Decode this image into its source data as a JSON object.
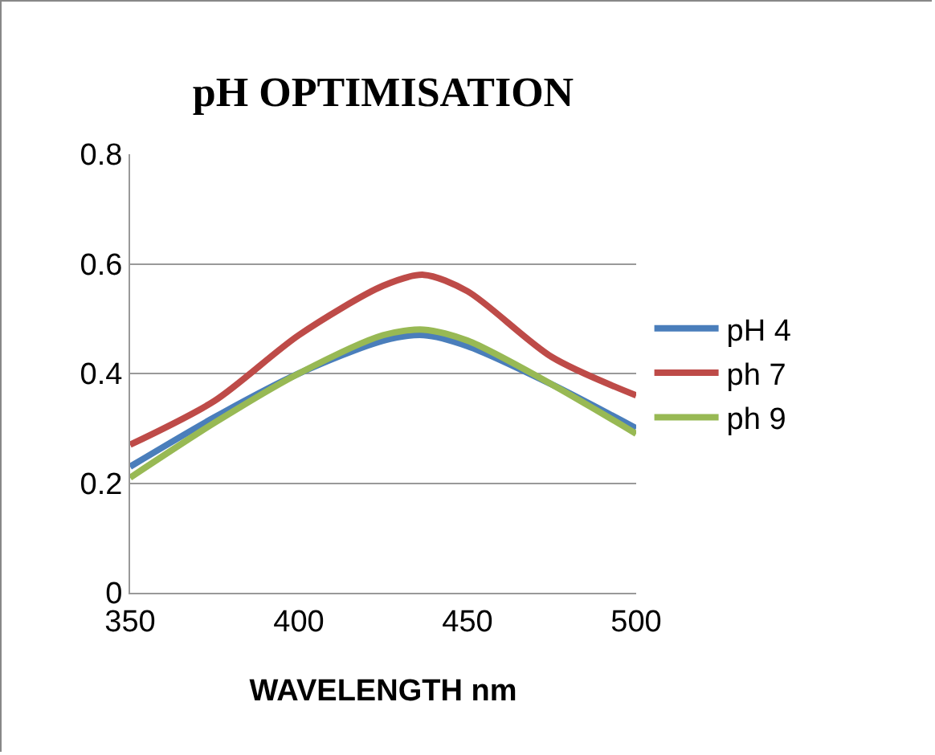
{
  "chart_data": {
    "type": "line",
    "title": "pH OPTIMISATION",
    "xlabel": "WAVELENGTH nm",
    "x": [
      350,
      375,
      400,
      425,
      437,
      450,
      475,
      500
    ],
    "series": [
      {
        "name": "pH 4",
        "color": "#4a7ebb",
        "values": [
          0.23,
          0.32,
          0.4,
          0.46,
          0.47,
          0.45,
          0.38,
          0.3
        ]
      },
      {
        "name": "ph 7",
        "color": "#be4b48",
        "values": [
          0.27,
          0.35,
          0.47,
          0.56,
          0.58,
          0.55,
          0.43,
          0.36
        ]
      },
      {
        "name": "ph 9",
        "color": "#98b954",
        "values": [
          0.21,
          0.31,
          0.4,
          0.47,
          0.48,
          0.46,
          0.38,
          0.29
        ]
      }
    ],
    "xlim": [
      350,
      500
    ],
    "xticks": [
      350,
      400,
      450,
      500
    ],
    "ylim": [
      0,
      0.8
    ],
    "yticks": [
      0,
      0.2,
      0.4,
      0.6,
      0.8
    ],
    "grid": "y",
    "legend": "right",
    "marker": "none",
    "line_style": "solid"
  }
}
